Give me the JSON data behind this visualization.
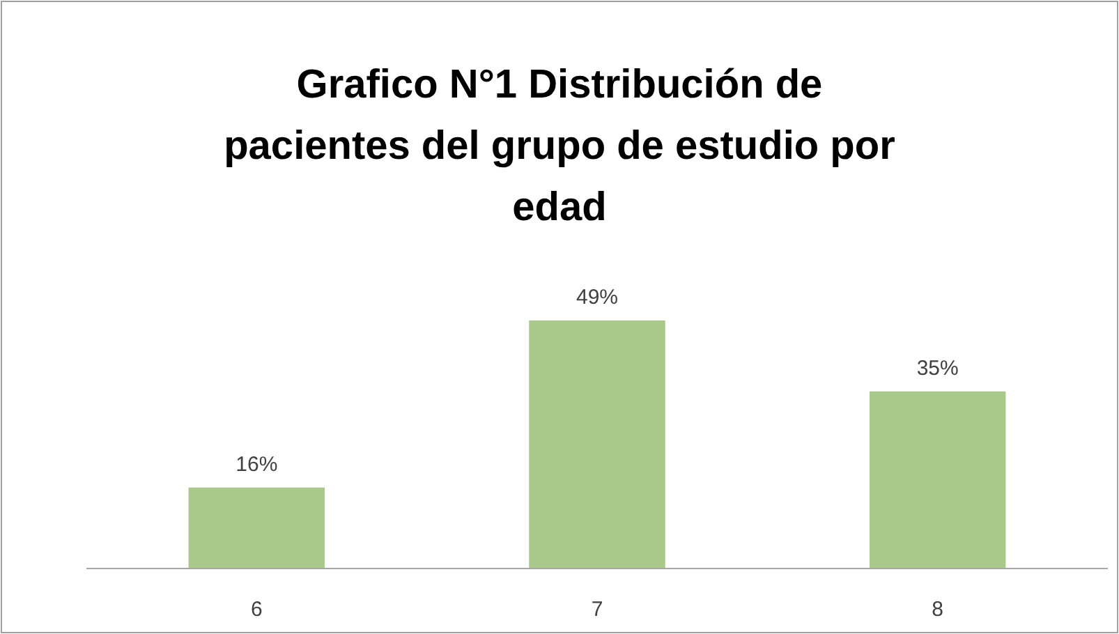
{
  "chart_data": {
    "type": "bar",
    "title": "Grafico N°1 Distribución de pacientes del grupo de estudio por edad",
    "categories": [
      "6",
      "7",
      "8"
    ],
    "values": [
      16,
      49,
      35
    ],
    "value_labels": [
      "16%",
      "49%",
      "35%"
    ],
    "color": "#a9c98a"
  }
}
